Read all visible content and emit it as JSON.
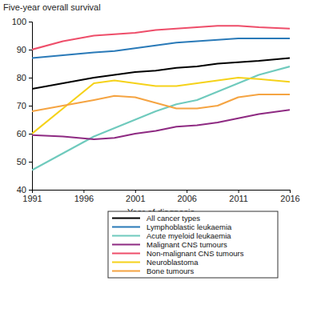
{
  "chart_data": {
    "type": "line",
    "y_label": "Five-year overall survival",
    "x_label": "Year of diagnosis",
    "x": [
      1991,
      1994,
      1997,
      1999,
      2001,
      2003,
      2005,
      2007,
      2009,
      2011,
      2013,
      2016
    ],
    "xlim": [
      1991,
      2016
    ],
    "xticks": [
      1991,
      1996,
      2001,
      2006,
      2011,
      2016
    ],
    "ylim": [
      40,
      100
    ],
    "yticks": [
      40,
      50,
      60,
      70,
      80,
      90,
      100
    ],
    "grid": false,
    "legend": "bottom",
    "series": [
      {
        "name": "All cancer types",
        "color": "#000000",
        "values": [
          76,
          78,
          80,
          81,
          82,
          82.5,
          83.5,
          84,
          85,
          85.5,
          86,
          87
        ]
      },
      {
        "name": "Lymphoblastic leukaemia",
        "color": "#2a7ab8",
        "values": [
          87,
          88,
          89,
          89.5,
          90.5,
          91.5,
          92.5,
          93,
          93.5,
          94,
          94,
          94
        ]
      },
      {
        "name": "Acute myeloid leukaemia",
        "color": "#6fcabd",
        "values": [
          47,
          53,
          59,
          62,
          65,
          68,
          70.5,
          72,
          75,
          78,
          81,
          84
        ]
      },
      {
        "name": "Malignant CNS tumours",
        "color": "#8e2a82",
        "values": [
          59.5,
          59,
          58,
          58.5,
          60,
          61,
          62.5,
          63,
          64,
          65.5,
          67,
          68.5
        ]
      },
      {
        "name": "Non-malignant CNS tumours",
        "color": "#ee4e6a",
        "values": [
          90,
          93,
          95,
          95.5,
          96,
          97,
          97.5,
          98,
          98.5,
          98.5,
          98,
          97.5
        ]
      },
      {
        "name": "Neuroblastoma",
        "color": "#f5d21a",
        "values": [
          60,
          69,
          78,
          79,
          78,
          77,
          77,
          78,
          79,
          80,
          79.5,
          78.5
        ]
      },
      {
        "name": "Bone tumours",
        "color": "#f5a442",
        "values": [
          68,
          70,
          72,
          73.5,
          73,
          71,
          69,
          69,
          70,
          73,
          74,
          74
        ]
      }
    ]
  }
}
